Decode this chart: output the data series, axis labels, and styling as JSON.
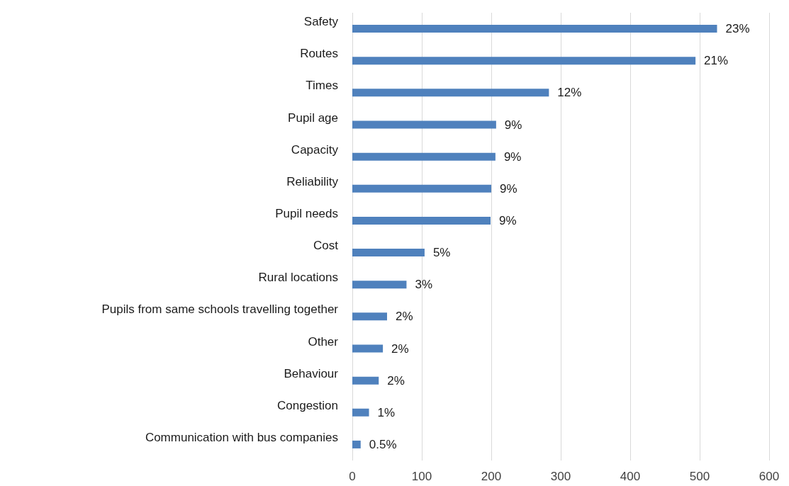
{
  "chart_data": {
    "type": "bar",
    "orientation": "horizontal",
    "categories": [
      "Safety",
      "Routes",
      "Times",
      "Pupil age",
      "Capacity",
      "Reliability",
      "Pupil needs",
      "Cost",
      "Rural locations",
      "Pupils from same schools travelling together",
      "Other",
      "Behaviour",
      "Congestion",
      "Communication with bus companies"
    ],
    "values": [
      525,
      494,
      283,
      207,
      206,
      200,
      199,
      104,
      78,
      50,
      44,
      38,
      24,
      12
    ],
    "annotations": [
      {
        "text": "23%",
        "x": 525,
        "y": "Safety"
      },
      {
        "text": "21%",
        "x": 494,
        "y": "Routes"
      },
      {
        "text": "12%",
        "x": 283,
        "y": "Times"
      },
      {
        "text": "9%",
        "x": 207,
        "y": "Pupil age"
      },
      {
        "text": "9%",
        "x": 206,
        "y": "Capacity"
      },
      {
        "text": "9%",
        "x": 200,
        "y": "Reliability"
      },
      {
        "text": "9%",
        "x": 199,
        "y": "Pupil needs"
      },
      {
        "text": "5%",
        "x": 104,
        "y": "Cost"
      },
      {
        "text": "3%",
        "x": 78,
        "y": "Rural locations"
      },
      {
        "text": "2%",
        "x": 50,
        "y": "Pupils from same schools travelling together"
      },
      {
        "text": "2%",
        "x": 44,
        "y": "Other"
      },
      {
        "text": "2%",
        "x": 38,
        "y": "Behaviour"
      },
      {
        "text": "1%",
        "x": 24,
        "y": "Congestion"
      },
      {
        "text": "0.5%",
        "x": 12,
        "y": "Communication with bus companies"
      }
    ],
    "color": "#4f81bd",
    "xlim": [
      0,
      600
    ],
    "xticks": [
      0,
      100,
      200,
      300,
      400,
      500,
      600
    ],
    "grid": "x"
  }
}
